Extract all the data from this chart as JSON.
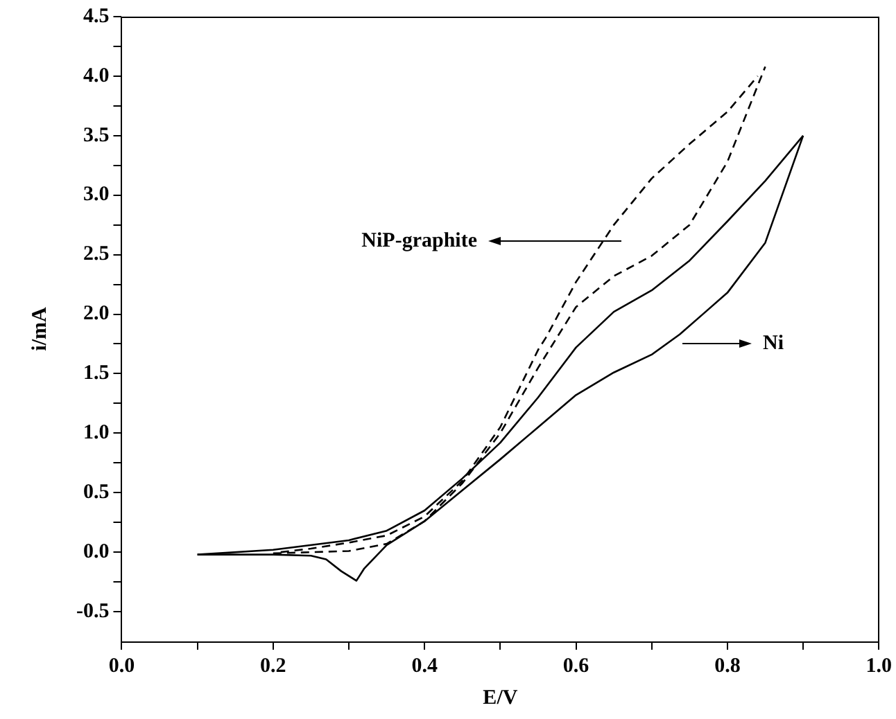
{
  "chart_data": {
    "type": "line",
    "xlabel": "E/V",
    "ylabel": "i/mA",
    "xlim": [
      0,
      1
    ],
    "ylim": [
      -0.75,
      4.5
    ],
    "xticks": [
      {
        "value": 0,
        "label": "0.0"
      },
      {
        "value": 0.1,
        "label": null
      },
      {
        "value": 0.2,
        "label": "0.2"
      },
      {
        "value": 0.3,
        "label": null
      },
      {
        "value": 0.4,
        "label": "0.4"
      },
      {
        "value": 0.5,
        "label": null
      },
      {
        "value": 0.6,
        "label": "0.6"
      },
      {
        "value": 0.7,
        "label": null
      },
      {
        "value": 0.8,
        "label": "0.8"
      },
      {
        "value": 0.9,
        "label": null
      },
      {
        "value": 1,
        "label": "1.0"
      }
    ],
    "yticks": [
      -0.5,
      {
        "value": -0.25,
        "label": null
      },
      {
        "value": 0,
        "label": "0.0"
      },
      {
        "value": 0.25,
        "label": null
      },
      0.5,
      {
        "value": 0.75,
        "label": null
      },
      {
        "value": 1,
        "label": "1.0"
      },
      {
        "value": 1.25,
        "label": null
      },
      1.5,
      {
        "value": 1.75,
        "label": null
      },
      {
        "value": 2,
        "label": "2.0"
      },
      {
        "value": 2.25,
        "label": null
      },
      2.5,
      {
        "value": 2.75,
        "label": null
      },
      {
        "value": 3,
        "label": "3.0"
      },
      {
        "value": 3.25,
        "label": null
      },
      3.5,
      {
        "value": 3.75,
        "label": null
      },
      {
        "value": 4,
        "label": "4.0"
      },
      {
        "value": 4.25,
        "label": null
      },
      4.5
    ],
    "grid": false,
    "legend": false,
    "marker": "none",
    "series": [
      {
        "color": "#000000",
        "line_style": "dashed",
        "x": [
          0.2,
          0.25,
          0.3,
          0.35,
          0.4,
          0.45,
          0.5,
          0.55,
          0.6,
          0.65,
          0.7,
          0.75,
          0.8,
          0.85
        ],
        "values": [
          -0.01,
          0,
          0.01,
          0.07,
          0.26,
          0.58,
          1.0,
          1.55,
          2.06,
          2.32,
          2.49,
          2.75,
          3.28,
          4.08
        ]
      },
      {
        "color": "#000000",
        "line_style": "dashed",
        "x": [
          0.21,
          0.25,
          0.3,
          0.35,
          0.4,
          0.45,
          0.5,
          0.55,
          0.56,
          0.6,
          0.65,
          0.7,
          0.75,
          0.8,
          0.84
        ],
        "values": [
          0,
          0.03,
          0.08,
          0.14,
          0.3,
          0.6,
          1.05,
          1.7,
          1.8,
          2.27,
          2.75,
          3.14,
          3.43,
          3.7,
          4.0
        ]
      },
      {
        "color": "#000000",
        "line_style": "solid",
        "x": [
          0.1,
          0.2,
          0.3,
          0.35,
          0.4,
          0.45,
          0.5,
          0.55,
          0.6,
          0.65,
          0.7,
          0.75,
          0.8,
          0.85,
          0.9
        ],
        "values": [
          -0.02,
          0.02,
          0.1,
          0.18,
          0.35,
          0.62,
          0.92,
          1.3,
          1.72,
          2.02,
          2.2,
          2.45,
          2.78,
          3.12,
          3.5
        ]
      },
      {
        "color": "#000000",
        "line_style": "solid",
        "x": [
          0.1,
          0.2,
          0.25,
          0.27,
          0.29,
          0.31,
          0.32,
          0.35,
          0.4,
          0.45,
          0.5,
          0.55,
          0.6,
          0.65,
          0.7,
          0.737,
          0.8,
          0.85,
          0.9
        ],
        "values": [
          -0.02,
          -0.02,
          -0.03,
          -0.06,
          -0.16,
          -0.24,
          -0.14,
          0.06,
          0.26,
          0.52,
          0.78,
          1.05,
          1.32,
          1.51,
          1.66,
          1.83,
          2.18,
          2.6,
          3.5
        ]
      }
    ],
    "annotations": [
      "NiP-graphite",
      "Ni"
    ]
  }
}
